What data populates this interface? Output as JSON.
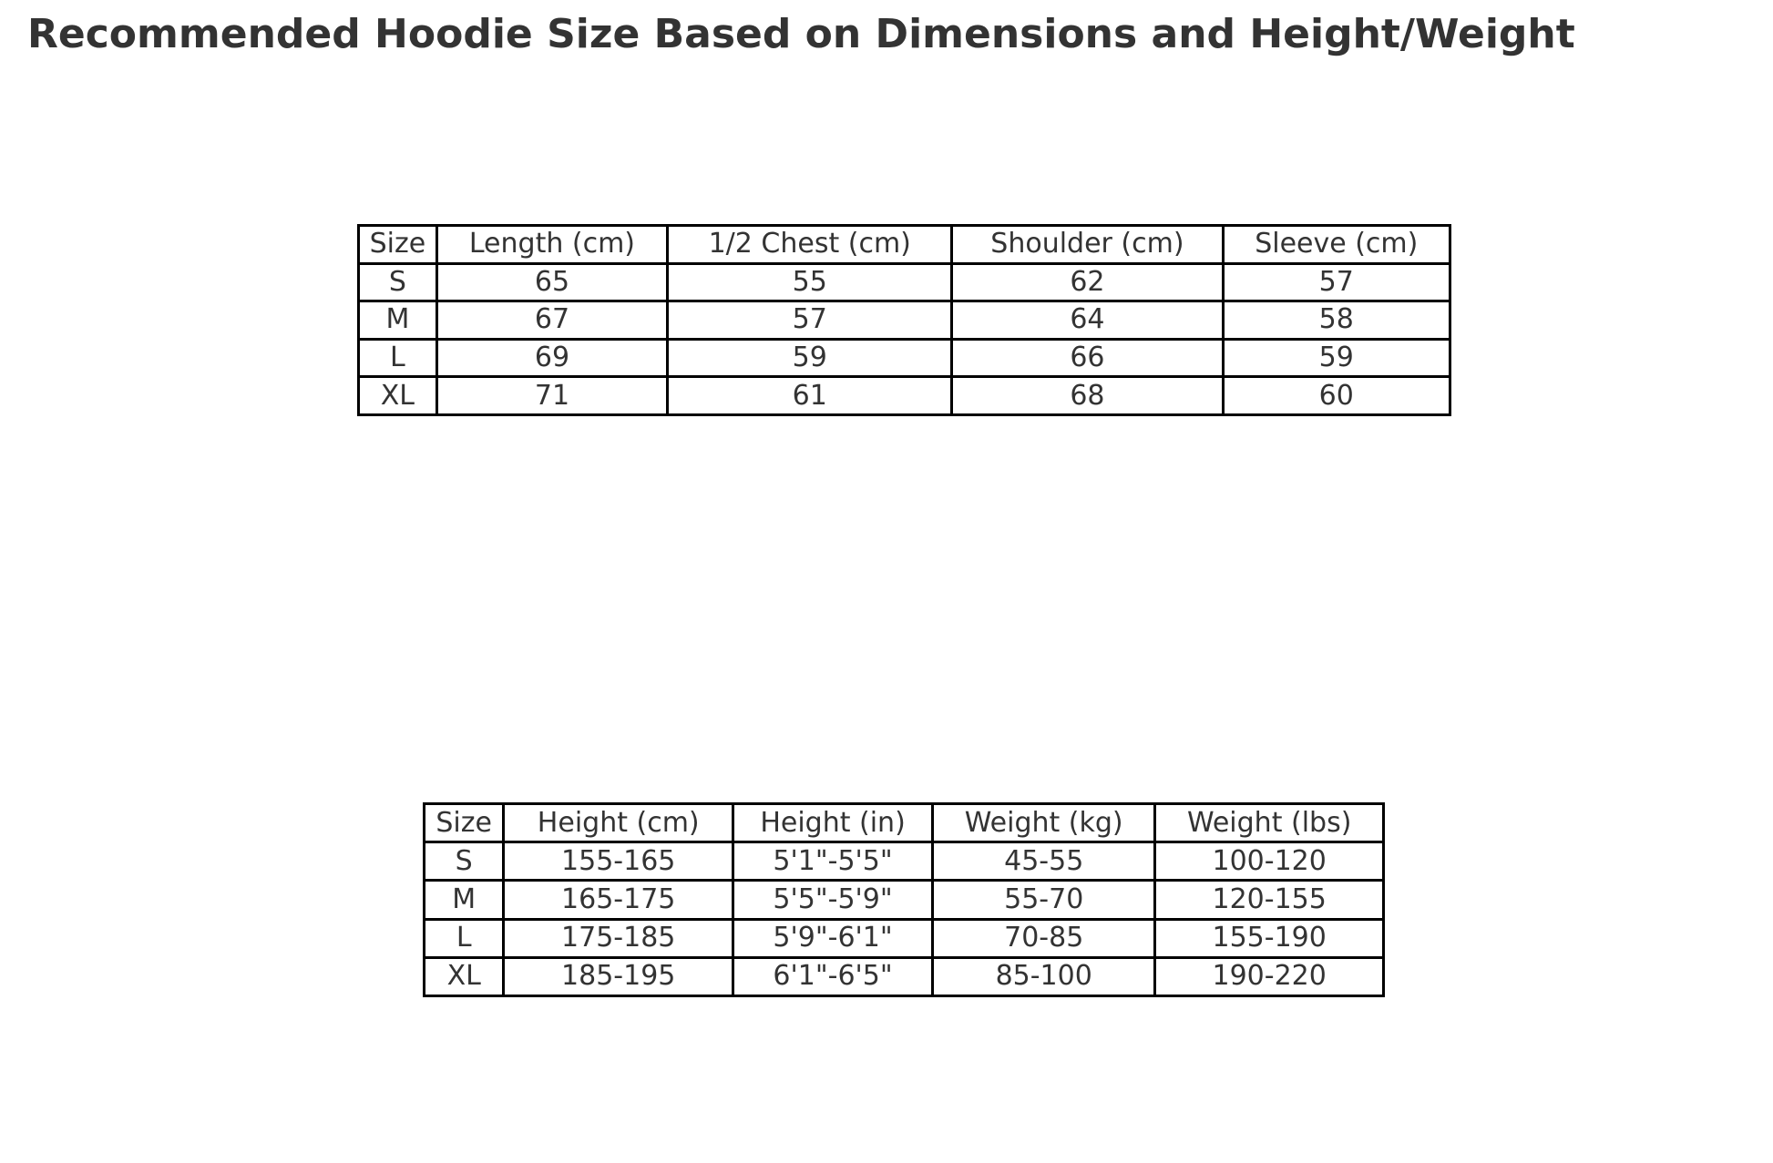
{
  "title": "Recommended Hoodie Size Based on Dimensions and Height/Weight",
  "colors": {
    "background": "#ffffff",
    "text": "#333333",
    "table_border": "#000000",
    "cell_background": "#ffffff"
  },
  "chart_data": [
    {
      "type": "table",
      "name": "hoodie-dimensions",
      "title": "",
      "columns": [
        "Size",
        "Length (cm)",
        "1/2 Chest (cm)",
        "Shoulder (cm)",
        "Sleeve (cm)"
      ],
      "rows": [
        [
          "S",
          "65",
          "55",
          "62",
          "57"
        ],
        [
          "M",
          "67",
          "57",
          "64",
          "58"
        ],
        [
          "L",
          "69",
          "59",
          "66",
          "59"
        ],
        [
          "XL",
          "71",
          "61",
          "68",
          "60"
        ]
      ]
    },
    {
      "type": "table",
      "name": "height-weight-recommendation",
      "title": "",
      "columns": [
        "Size",
        "Height (cm)",
        "Height (in)",
        "Weight (kg)",
        "Weight (lbs)"
      ],
      "rows": [
        [
          "S",
          "155-165",
          "5'1\"-5'5\"",
          "45-55",
          "100-120"
        ],
        [
          "M",
          "165-175",
          "5'5\"-5'9\"",
          "55-70",
          "120-155"
        ],
        [
          "L",
          "175-185",
          "5'9\"-6'1\"",
          "70-85",
          "155-190"
        ],
        [
          "XL",
          "185-195",
          "6'1\"-6'5\"",
          "85-100",
          "190-220"
        ]
      ]
    }
  ]
}
